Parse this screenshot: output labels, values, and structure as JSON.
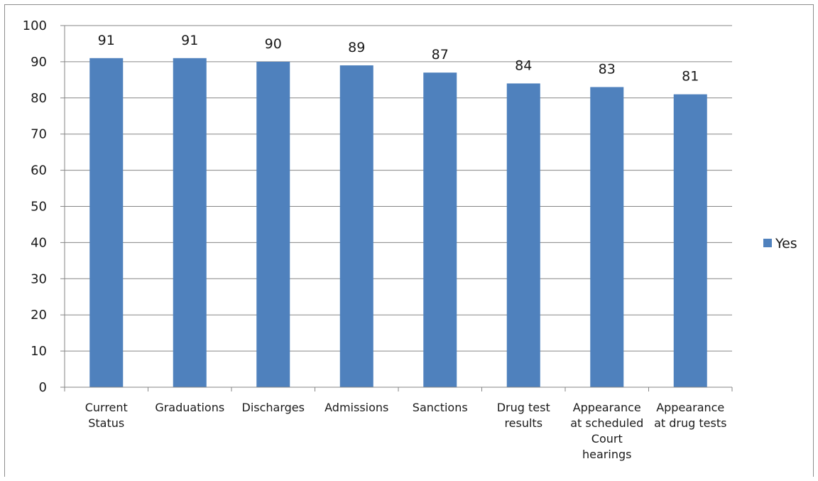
{
  "chart_data": {
    "type": "bar",
    "categories": [
      [
        "Current",
        "Status"
      ],
      [
        "Graduations"
      ],
      [
        "Discharges"
      ],
      [
        "Admissions"
      ],
      [
        "Sanctions"
      ],
      [
        "Drug test",
        "results"
      ],
      [
        "Appearance",
        "at scheduled",
        "Court",
        "hearings"
      ],
      [
        "Appearance",
        "at drug tests"
      ]
    ],
    "series": [
      {
        "name": "Yes",
        "values": [
          91,
          91,
          90,
          89,
          87,
          84,
          83,
          81
        ]
      }
    ],
    "ylim": [
      0,
      100
    ],
    "yticks": [
      0,
      10,
      20,
      30,
      40,
      50,
      60,
      70,
      80,
      90,
      100
    ],
    "grid": true,
    "legend_position": "right",
    "colors": {
      "bar": "#4f81bd",
      "grid": "#868686",
      "axis": "#868686"
    }
  }
}
